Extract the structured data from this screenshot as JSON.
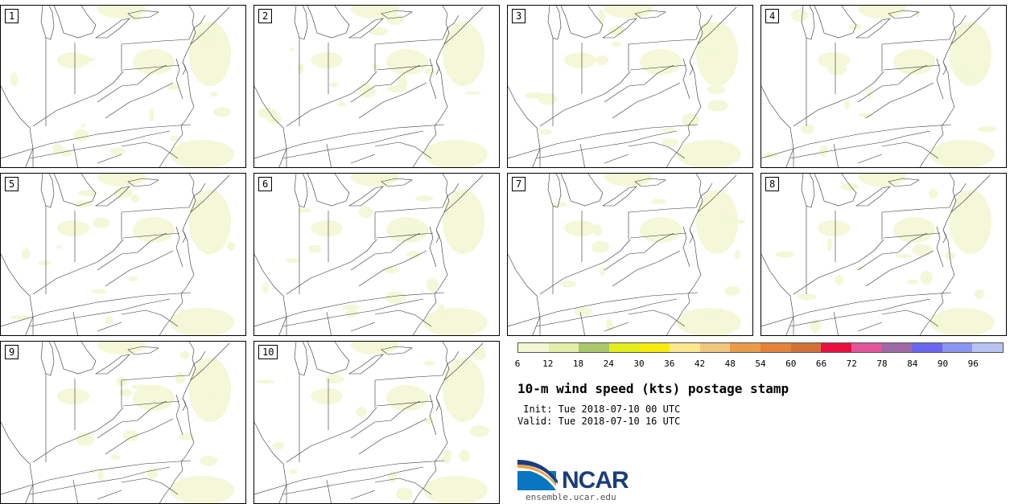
{
  "panels": [
    "1",
    "2",
    "3",
    "4",
    "5",
    "6",
    "7",
    "8",
    "9",
    "10"
  ],
  "colorbar": {
    "colors": [
      "#f3f7d4",
      "#e3efa8",
      "#a8c86a",
      "#e1ed1c",
      "#f8ec0e",
      "#fbe88e",
      "#f1c77e",
      "#e89c4a",
      "#e5823b",
      "#d4713a",
      "#e8103e",
      "#e2559a",
      "#9f69a5",
      "#6a67ee",
      "#8c95f2",
      "#b9c3f1"
    ],
    "ticks": [
      "6",
      "12",
      "18",
      "24",
      "30",
      "36",
      "42",
      "48",
      "54",
      "60",
      "66",
      "72",
      "78",
      "84",
      "90",
      "96"
    ]
  },
  "title": "10-m wind speed (kts) postage stamp",
  "init": " Init: Tue 2018-07-10 00 UTC",
  "valid": "Valid: Tue 2018-07-10 16 UTC",
  "logo": {
    "text": "NCAR",
    "url": "ensemble.ucar.edu"
  }
}
